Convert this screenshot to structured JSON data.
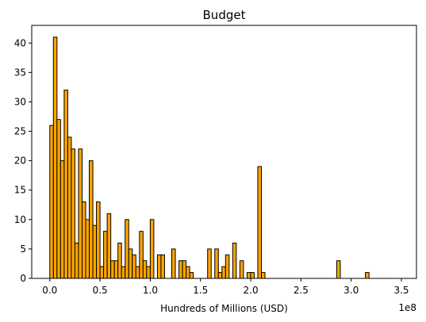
{
  "chart_data": {
    "type": "bar",
    "title": "Budget",
    "xlabel": "Hundreds of Millions (USD)",
    "ylabel": "",
    "x_offset_label": "1e8",
    "xlim": [
      -0.18,
      3.65
    ],
    "ylim": [
      0,
      43
    ],
    "x_ticks": [
      0.0,
      0.5,
      1.0,
      1.5,
      2.0,
      2.5,
      3.0,
      3.5
    ],
    "x_tick_labels": [
      "0.0",
      "0.5",
      "1.0",
      "1.5",
      "2.0",
      "2.5",
      "3.0",
      "3.5"
    ],
    "y_ticks": [
      0,
      5,
      10,
      15,
      20,
      25,
      30,
      35,
      40
    ],
    "y_tick_labels": [
      "0",
      "5",
      "10",
      "15",
      "20",
      "25",
      "30",
      "35",
      "40"
    ],
    "bin_width": 0.0357,
    "bins_start": [
      0.0,
      0.0357,
      0.0714,
      0.1071,
      0.1428,
      0.1785,
      0.2142,
      0.2499,
      0.2856,
      0.3213,
      0.357,
      0.3927,
      0.4284,
      0.4641,
      0.4998,
      0.5355,
      0.5712,
      0.6069,
      0.6426,
      0.6783,
      0.714,
      0.7497,
      0.7854,
      0.8211,
      0.8568,
      0.8925,
      0.9282,
      0.9639,
      0.9996,
      1.0353,
      1.071,
      1.1067,
      1.1424,
      1.1781,
      1.2138,
      1.2495,
      1.2852,
      1.3209,
      1.3566,
      1.3923,
      1.428,
      1.4637,
      1.4994,
      1.5351,
      1.5708,
      1.6065,
      1.6422,
      1.6779,
      1.7136,
      1.7493,
      1.785,
      1.8207,
      1.8564,
      1.8921,
      1.9278,
      1.9635,
      1.9992,
      2.0349,
      2.0706,
      2.1063,
      2.142,
      2.1777,
      2.2134,
      2.2491,
      2.2848,
      2.3205,
      2.3562,
      2.3919,
      2.4276,
      2.4633,
      2.499,
      2.5347,
      2.5704,
      2.6061,
      2.6418,
      2.6775,
      2.7132,
      2.7489,
      2.7846,
      2.8203,
      2.856,
      2.8917,
      2.9274,
      2.9631,
      2.9988,
      3.0345,
      3.0702,
      3.1059,
      3.1416,
      3.1773,
      3.213,
      3.2487,
      3.2844,
      3.3201,
      3.3558,
      3.3915,
      3.4272,
      3.4629,
      3.4986,
      3.5343
    ],
    "values": [
      26,
      41,
      27,
      20,
      32,
      24,
      22,
      6,
      22,
      13,
      10,
      20,
      9,
      13,
      2,
      8,
      11,
      3,
      3,
      6,
      2,
      10,
      5,
      4,
      2,
      8,
      3,
      2,
      10,
      0,
      4,
      4,
      0,
      0,
      5,
      0,
      3,
      3,
      2,
      1,
      0,
      0,
      0,
      0,
      5,
      0,
      5,
      1,
      2,
      4,
      0,
      6,
      0,
      3,
      0,
      1,
      1,
      0,
      19,
      1,
      0,
      0,
      0,
      0,
      0,
      0,
      0,
      0,
      0,
      0,
      0,
      0,
      0,
      0,
      0,
      0,
      0,
      0,
      0,
      0,
      3,
      0,
      0,
      0,
      0,
      0,
      0,
      0,
      1,
      0,
      0,
      0,
      0,
      0,
      0,
      0,
      0,
      0,
      0,
      0
    ],
    "bar_color": "#ffa500",
    "edge_color": "#000000",
    "grid": false,
    "legend": "none"
  }
}
